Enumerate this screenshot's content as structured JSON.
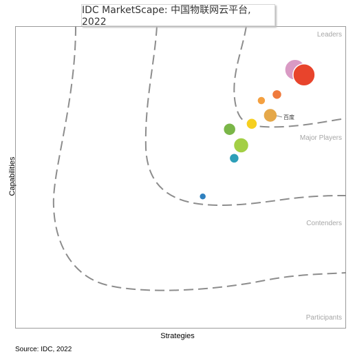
{
  "chart_data": {
    "type": "scatter",
    "title": "IDC MarketScape:  中国物联网云平台, 2022",
    "xlabel": "Strategies",
    "ylabel": "Capabilities",
    "source": "Source: IDC, 2022",
    "xlim": [
      0,
      100
    ],
    "ylim": [
      0,
      100
    ],
    "grid": false,
    "categories": [
      "Leaders",
      "Major Players",
      "Contenders",
      "Participants"
    ],
    "points": [
      {
        "x": 84.6,
        "y": 85.6,
        "r": 15,
        "color": "#d99ac4"
      },
      {
        "x": 87.3,
        "y": 83.9,
        "r": 16,
        "color": "#e8442c"
      },
      {
        "x": 79.1,
        "y": 77.4,
        "r": 7,
        "color": "#ef7a3d"
      },
      {
        "x": 74.4,
        "y": 75.4,
        "r": 6,
        "color": "#f4a040"
      },
      {
        "x": 77.1,
        "y": 70.5,
        "r": 10,
        "color": "#e5a84a",
        "label": "百度"
      },
      {
        "x": 71.5,
        "y": 67.7,
        "r": 8,
        "color": "#f6cf1f"
      },
      {
        "x": 64.8,
        "y": 65.9,
        "r": 9,
        "color": "#7ab648"
      },
      {
        "x": 68.3,
        "y": 60.6,
        "r": 11,
        "color": "#a3cf45"
      },
      {
        "x": 66.2,
        "y": 56.3,
        "r": 7,
        "color": "#2d9fb8"
      },
      {
        "x": 56.7,
        "y": 43.7,
        "r": 5,
        "color": "#2f80bf"
      }
    ]
  }
}
